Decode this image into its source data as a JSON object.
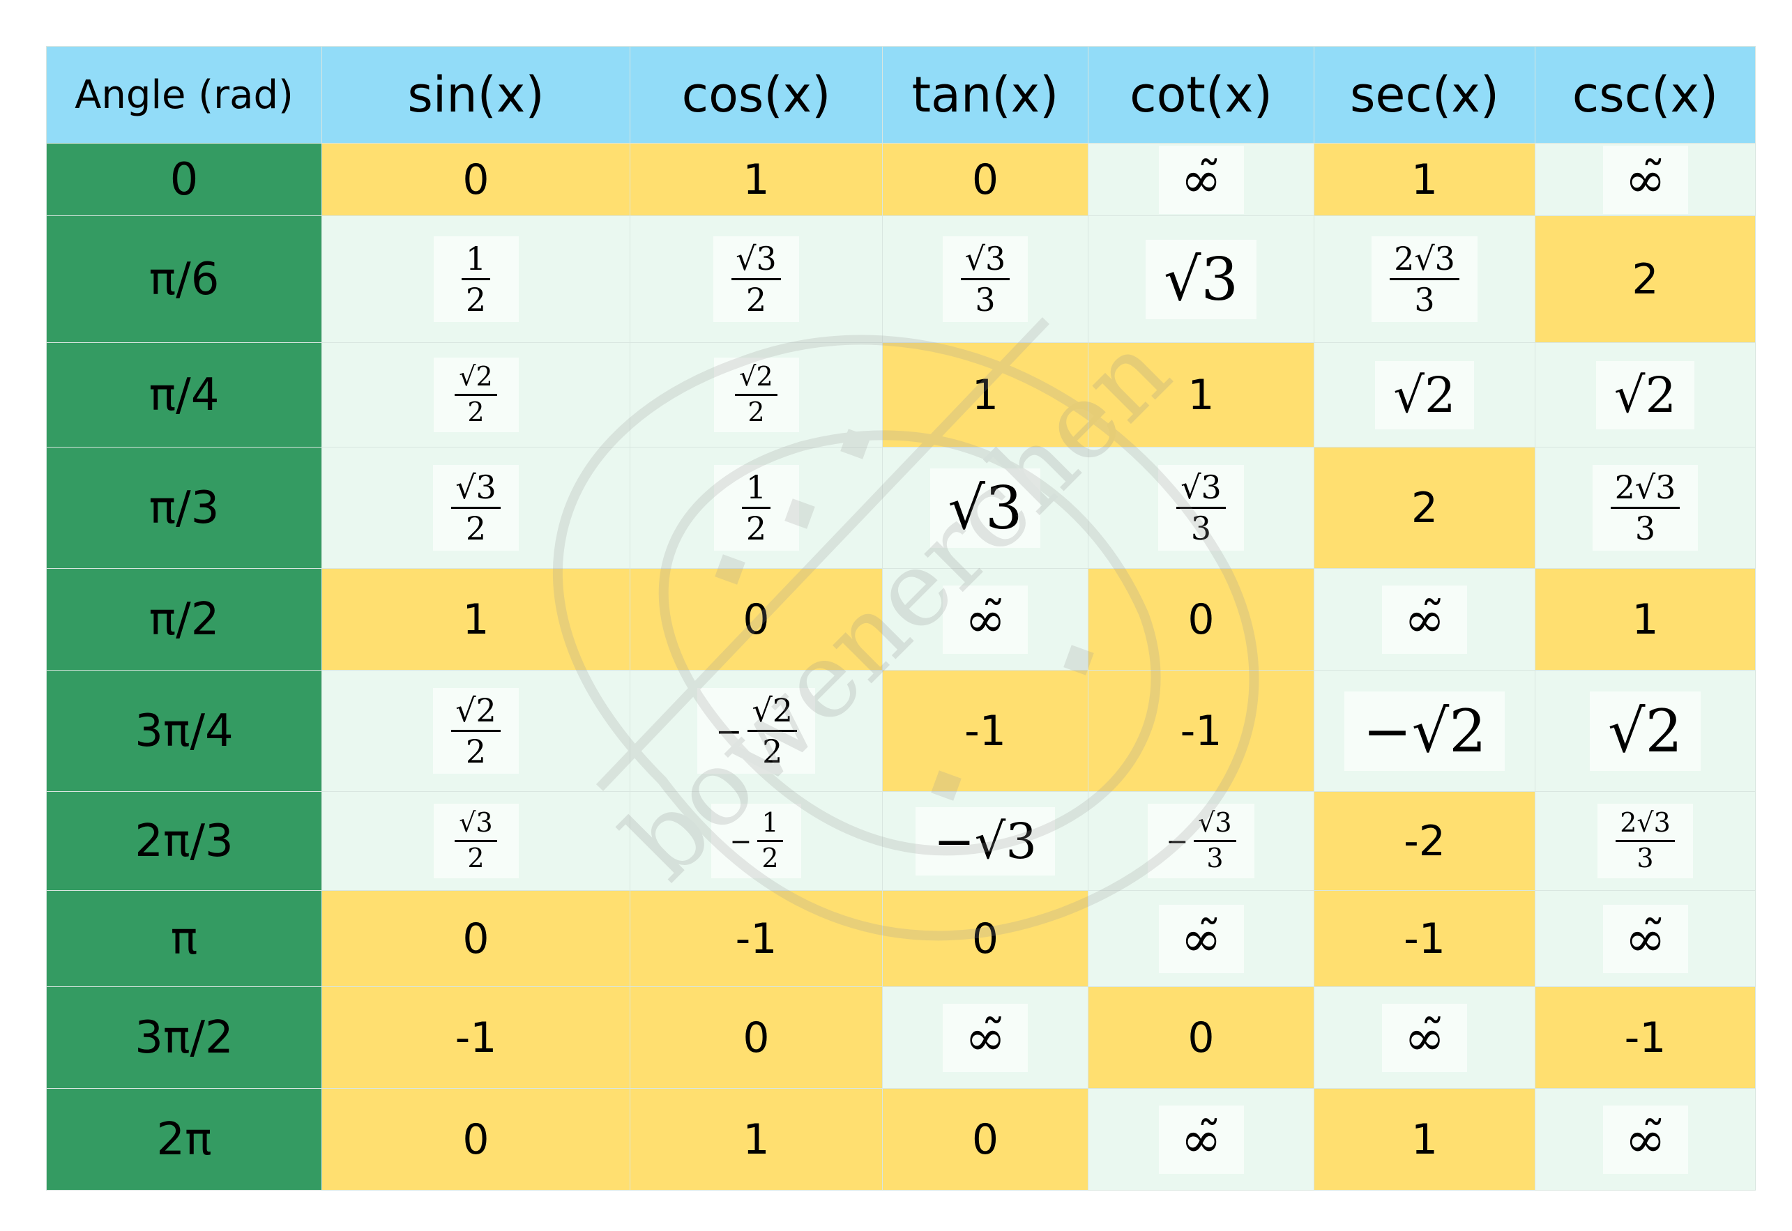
{
  "watermark": "bowenerchen",
  "header": {
    "angle_label": "Angle (rad)",
    "sin": "sin(x)",
    "cos": "cos(x)",
    "tan": "tan(x)",
    "cot": "cot(x)",
    "sec": "sec(x)",
    "csc": "csc(x)"
  },
  "colors": {
    "header_bg": "#92dcf8",
    "angle_bg": "#349b62",
    "highlight": "#ffdf70",
    "symbolic_bg": "#eaf8f0"
  },
  "rows": [
    {
      "angle": "0",
      "sin": {
        "t": "0"
      },
      "cos": {
        "t": "1"
      },
      "tan": {
        "t": "0"
      },
      "cot": {
        "s": "∞̃"
      },
      "sec": {
        "t": "1"
      },
      "csc": {
        "s": "∞̃"
      }
    },
    {
      "angle": "π/6",
      "sin": {
        "n": "1",
        "d": "2"
      },
      "cos": {
        "n": "√3",
        "d": "2"
      },
      "tan": {
        "n": "√3",
        "d": "3"
      },
      "cot": {
        "s": "√3"
      },
      "sec": {
        "n": "2√3",
        "d": "3"
      },
      "csc": {
        "t": "2"
      }
    },
    {
      "angle": "π/4",
      "sin": {
        "n": "√2",
        "d": "2"
      },
      "cos": {
        "n": "√2",
        "d": "2"
      },
      "tan": {
        "t": "1"
      },
      "cot": {
        "t": "1"
      },
      "sec": {
        "s": "√2"
      },
      "csc": {
        "s": "√2"
      }
    },
    {
      "angle": "π/3",
      "sin": {
        "n": "√3",
        "d": "2"
      },
      "cos": {
        "n": "1",
        "d": "2"
      },
      "tan": {
        "s": "√3"
      },
      "cot": {
        "n": "√3",
        "d": "3"
      },
      "sec": {
        "t": "2"
      },
      "csc": {
        "n": "2√3",
        "d": "3"
      }
    },
    {
      "angle": "π/2",
      "sin": {
        "t": "1"
      },
      "cos": {
        "t": "0"
      },
      "tan": {
        "s": "∞̃"
      },
      "cot": {
        "t": "0"
      },
      "sec": {
        "s": "∞̃"
      },
      "csc": {
        "t": "1"
      }
    },
    {
      "angle": "3π/4",
      "sin": {
        "n": "√2",
        "d": "2"
      },
      "cos": {
        "sign": "−",
        "n": "√2",
        "d": "2"
      },
      "tan": {
        "t": "-1"
      },
      "cot": {
        "t": "-1"
      },
      "sec": {
        "s": "−√2"
      },
      "csc": {
        "s": "√2"
      }
    },
    {
      "angle": "2π/3",
      "sin": {
        "n": "√3",
        "d": "2"
      },
      "cos": {
        "sign": "−",
        "n": "1",
        "d": "2"
      },
      "tan": {
        "s": "−√3"
      },
      "cot": {
        "sign": "−",
        "n": "√3",
        "d": "3"
      },
      "sec": {
        "t": "-2"
      },
      "csc": {
        "n": "2√3",
        "d": "3"
      }
    },
    {
      "angle": "π",
      "sin": {
        "t": "0"
      },
      "cos": {
        "t": "-1"
      },
      "tan": {
        "t": "0"
      },
      "cot": {
        "s": "∞̃"
      },
      "sec": {
        "t": "-1"
      },
      "csc": {
        "s": "∞̃"
      }
    },
    {
      "angle": "3π/2",
      "sin": {
        "t": "-1"
      },
      "cos": {
        "t": "0"
      },
      "tan": {
        "s": "∞̃"
      },
      "cot": {
        "t": "0"
      },
      "sec": {
        "s": "∞̃"
      },
      "csc": {
        "t": "-1"
      }
    },
    {
      "angle": "2π",
      "sin": {
        "t": "0"
      },
      "cos": {
        "t": "1"
      },
      "tan": {
        "t": "0"
      },
      "cot": {
        "s": "∞̃"
      },
      "sec": {
        "t": "1"
      },
      "csc": {
        "s": "∞̃"
      }
    }
  ]
}
